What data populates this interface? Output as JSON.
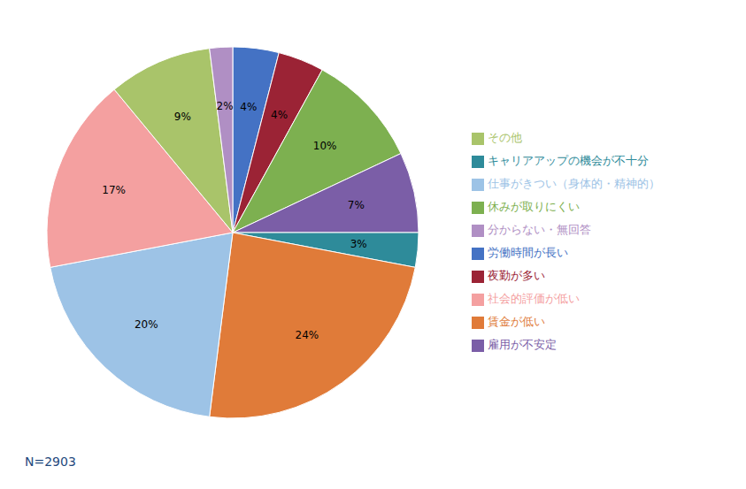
{
  "chart_data": {
    "type": "pie",
    "categories": [
      "労働時間が長い",
      "夜勤が多い",
      "休みが取りにくい",
      "雇用が不安定",
      "キャリアアップの機会が不十分",
      "賃金が低い",
      "仕事がきつい（身体的・精神的）",
      "社会的評価が低い",
      "その他",
      "分からない・無回答"
    ],
    "values": [
      4,
      4,
      10,
      7,
      3,
      24,
      20,
      17,
      9,
      2
    ],
    "value_labels": [
      "4%",
      "4%",
      "10%",
      "7%",
      "3%",
      "24%",
      "20%",
      "17%",
      "9%",
      "2%"
    ],
    "data_labels": true,
    "colors": [
      "#4472C4",
      "#9B2335",
      "#7DB050",
      "#7B5EA7",
      "#2E8B9A",
      "#E07B39",
      "#9DC3E6",
      "#F4A0A0",
      "#A9C46A",
      "#B08FC4"
    ],
    "legend": "right",
    "annotations": [
      {
        "text": "N=2903",
        "color": "#1F497D"
      }
    ]
  }
}
